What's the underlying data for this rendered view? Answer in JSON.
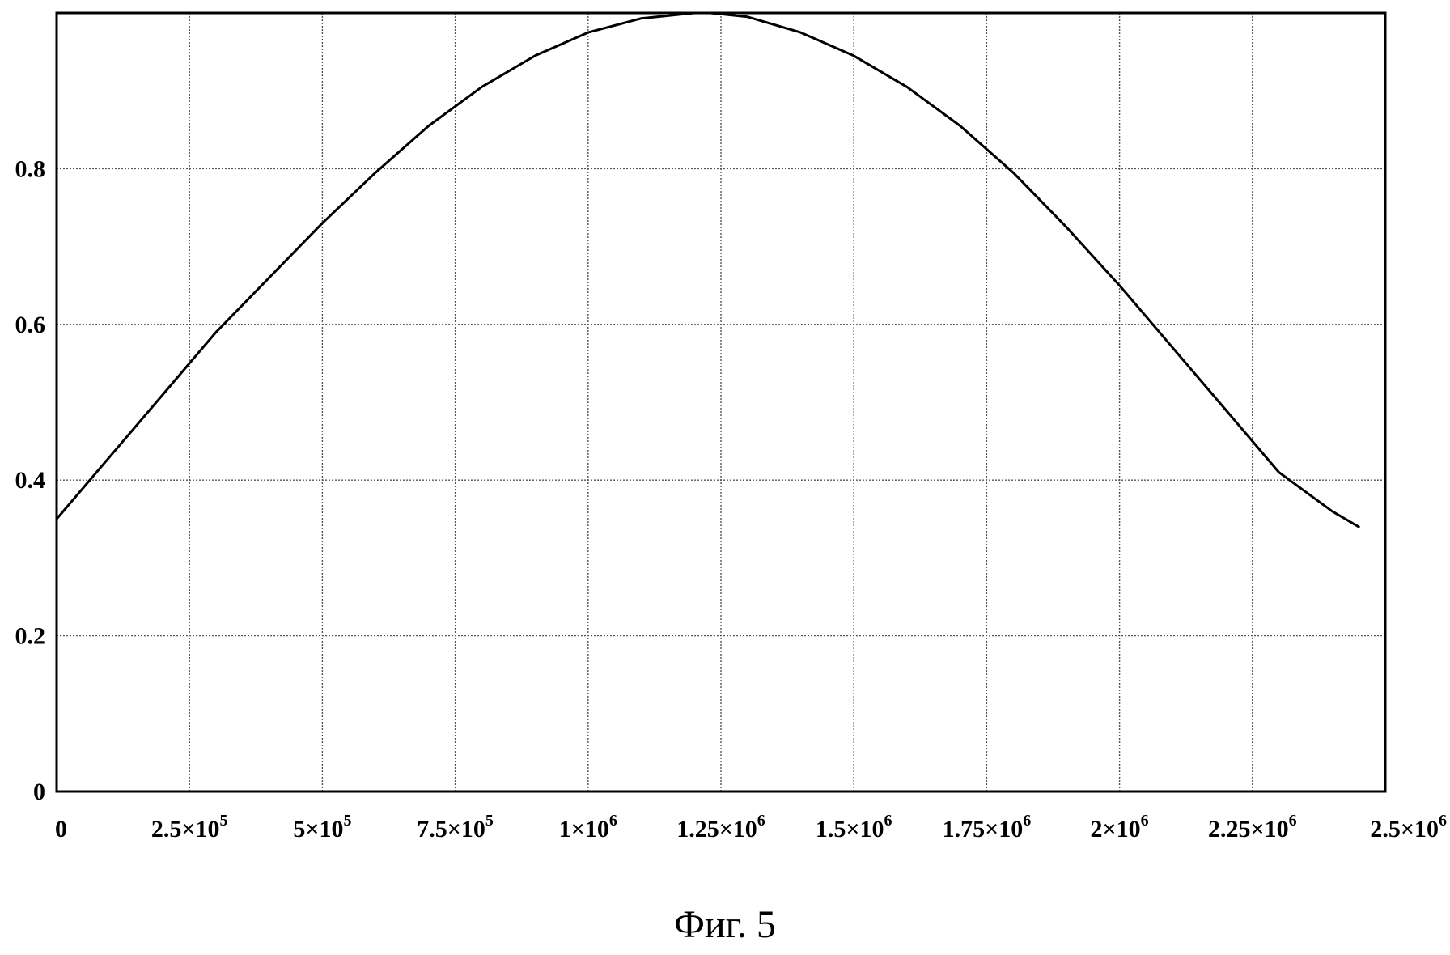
{
  "caption": "Фиг. 5",
  "chart_data": {
    "type": "line",
    "title": "",
    "xlabel": "",
    "ylabel": "",
    "xlim": [
      0,
      2500000
    ],
    "ylim": [
      0,
      1
    ],
    "grid": true,
    "legend": "none",
    "line_color": "#000000",
    "x_ticks": [
      {
        "value": 0,
        "mantissa": "0",
        "exp": ""
      },
      {
        "value": 250000,
        "mantissa": "2.5×10",
        "exp": "5"
      },
      {
        "value": 500000,
        "mantissa": "5×10",
        "exp": "5"
      },
      {
        "value": 750000,
        "mantissa": "7.5×10",
        "exp": "5"
      },
      {
        "value": 1000000,
        "mantissa": "1×10",
        "exp": "6"
      },
      {
        "value": 1250000,
        "mantissa": "1.25×10",
        "exp": "6"
      },
      {
        "value": 1500000,
        "mantissa": "1.5×10",
        "exp": "6"
      },
      {
        "value": 1750000,
        "mantissa": "1.75×10",
        "exp": "6"
      },
      {
        "value": 2000000,
        "mantissa": "2×10",
        "exp": "6"
      },
      {
        "value": 2250000,
        "mantissa": "2.25×10",
        "exp": "6"
      },
      {
        "value": 2500000,
        "mantissa": "2.5×10",
        "exp": "6"
      }
    ],
    "y_ticks": [
      {
        "value": 0,
        "label": "0"
      },
      {
        "value": 0.2,
        "label": "0.2"
      },
      {
        "value": 0.4,
        "label": "0.4"
      },
      {
        "value": 0.6,
        "label": "0.6"
      },
      {
        "value": 0.8,
        "label": "0.8"
      }
    ],
    "series": [
      {
        "x": [
          0,
          100000,
          200000,
          300000,
          400000,
          500000,
          600000,
          700000,
          800000,
          900000,
          1000000,
          1100000,
          1200000,
          1230000,
          1300000,
          1400000,
          1500000,
          1600000,
          1700000,
          1800000,
          1900000,
          2000000,
          2100000,
          2200000,
          2300000,
          2400000,
          2450000
        ],
        "y": [
          0.35,
          0.43,
          0.51,
          0.59,
          0.66,
          0.73,
          0.795,
          0.855,
          0.905,
          0.945,
          0.975,
          0.993,
          1.0,
          1.0,
          0.995,
          0.975,
          0.945,
          0.905,
          0.855,
          0.795,
          0.725,
          0.65,
          0.57,
          0.49,
          0.41,
          0.36,
          0.34
        ]
      }
    ]
  }
}
